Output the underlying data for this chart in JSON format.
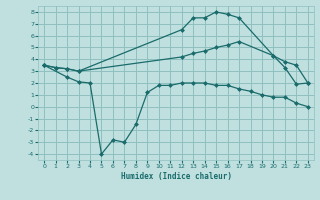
{
  "background_color": "#c0e0e0",
  "grid_color": "#90c0c0",
  "line_color": "#1a6b6b",
  "xlabel": "Humidex (Indice chaleur)",
  "xlim": [
    -0.5,
    23.5
  ],
  "ylim": [
    -4.5,
    8.5
  ],
  "xticks": [
    0,
    1,
    2,
    3,
    4,
    5,
    6,
    7,
    8,
    9,
    10,
    11,
    12,
    13,
    14,
    15,
    16,
    17,
    18,
    19,
    20,
    21,
    22,
    23
  ],
  "yticks": [
    -4,
    -3,
    -2,
    -1,
    0,
    1,
    2,
    3,
    4,
    5,
    6,
    7,
    8
  ],
  "line1_x": [
    0,
    1,
    2,
    3,
    12,
    13,
    14,
    15,
    16,
    17,
    20,
    21,
    22,
    23
  ],
  "line1_y": [
    3.5,
    3.3,
    3.2,
    3.0,
    6.5,
    7.5,
    7.5,
    8.0,
    7.8,
    7.5,
    4.3,
    3.3,
    1.9,
    2.0
  ],
  "line2_x": [
    0,
    1,
    2,
    3,
    12,
    13,
    14,
    15,
    16,
    17,
    20,
    21,
    22,
    23
  ],
  "line2_y": [
    3.5,
    3.3,
    3.2,
    3.0,
    4.2,
    4.5,
    4.7,
    5.0,
    5.2,
    5.5,
    4.3,
    3.8,
    3.5,
    2.0
  ],
  "line3_x": [
    0,
    2,
    3,
    4,
    5,
    6,
    7,
    8,
    9,
    10,
    11,
    12,
    13,
    14,
    15,
    16,
    17,
    18,
    19,
    20,
    21,
    22,
    23
  ],
  "line3_y": [
    3.5,
    2.5,
    2.1,
    2.0,
    -4.0,
    -2.8,
    -3.0,
    -1.5,
    1.2,
    1.8,
    1.8,
    2.0,
    2.0,
    2.0,
    1.8,
    1.8,
    1.5,
    1.3,
    1.0,
    0.8,
    0.8,
    0.3,
    0.0
  ]
}
